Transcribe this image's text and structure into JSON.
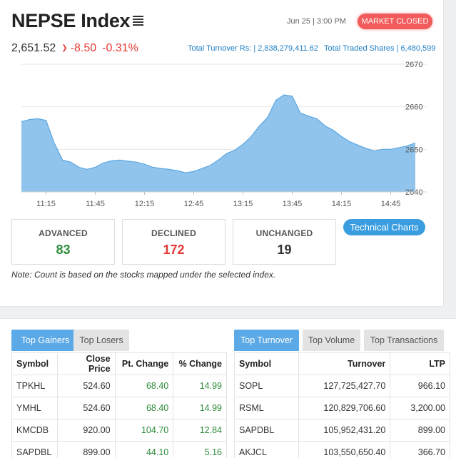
{
  "header": {
    "title": "NEPSE Index",
    "datetime": "Jun 25 | 3:00 PM",
    "market_status": "MARKET CLOSED"
  },
  "index": {
    "value": "2,651.52",
    "change": "-8.50",
    "percent": "-0.31%"
  },
  "turnover": {
    "label": "Total Turnover Rs: | 2,838,279,411.62",
    "shares": "Total Traded Shares | 6,480,599"
  },
  "chart_data": {
    "type": "area",
    "x_ticks": [
      "11:15",
      "11:45",
      "12:15",
      "12:45",
      "13:15",
      "13:45",
      "14:15",
      "14:45"
    ],
    "y_ticks": [
      "2640",
      "2650",
      "2660",
      "2670"
    ],
    "ylim": [
      2640,
      2670
    ],
    "x": [
      "11:00",
      "11:05",
      "11:10",
      "11:15",
      "11:20",
      "11:25",
      "11:30",
      "11:35",
      "11:40",
      "11:45",
      "11:50",
      "11:55",
      "12:00",
      "12:05",
      "12:10",
      "12:15",
      "12:20",
      "12:25",
      "12:30",
      "12:35",
      "12:40",
      "12:45",
      "12:50",
      "12:55",
      "13:00",
      "13:05",
      "13:10",
      "13:15",
      "13:20",
      "13:25",
      "13:30",
      "13:35",
      "13:40",
      "13:45",
      "13:50",
      "13:55",
      "14:00",
      "14:05",
      "14:10",
      "14:15",
      "14:20",
      "14:25",
      "14:30",
      "14:35",
      "14:40",
      "14:45",
      "14:50",
      "14:55",
      "15:00"
    ],
    "values": [
      2656.5,
      2657.0,
      2657.2,
      2656.8,
      2651.5,
      2647.5,
      2647.0,
      2645.8,
      2645.3,
      2645.8,
      2646.8,
      2647.3,
      2647.5,
      2647.2,
      2647.0,
      2646.5,
      2645.8,
      2645.5,
      2645.3,
      2645.0,
      2644.5,
      2644.8,
      2645.5,
      2646.2,
      2647.5,
      2649.0,
      2649.8,
      2651.2,
      2653.0,
      2655.5,
      2657.5,
      2661.5,
      2662.8,
      2662.5,
      2658.5,
      2657.8,
      2657.2,
      2655.5,
      2654.5,
      2653.0,
      2651.8,
      2651.0,
      2650.2,
      2649.6,
      2650.0,
      2650.0,
      2650.4,
      2650.8,
      2651.5
    ]
  },
  "stats": {
    "advanced_label": "ADVANCED",
    "advanced_value": "83",
    "declined_label": "DECLINED",
    "declined_value": "172",
    "unchanged_label": "UNCHANGED",
    "unchanged_value": "19"
  },
  "technical_charts_label": "Technical Charts",
  "note": "Note: Count is based on the stocks mapped under the selected index.",
  "colors": {
    "accent": "#3a9de0",
    "chart_fill": "#91c4ec",
    "chart_line": "#5aa6e2",
    "negative": "#e53935",
    "positive": "#2e8b3c",
    "market_closed": "#f25b5b"
  },
  "gainers": {
    "tabs": [
      "Top Gainers",
      "Top Losers"
    ],
    "headers": [
      "Symbol",
      "Close Price",
      "Pt. Change",
      "% Change"
    ],
    "rows": [
      [
        "TPKHL",
        "524.60",
        "68.40",
        "14.99"
      ],
      [
        "YMHL",
        "524.60",
        "68.40",
        "14.99"
      ],
      [
        "KMCDB",
        "920.00",
        "104.70",
        "12.84"
      ],
      [
        "SAPDBL",
        "899.00",
        "44.10",
        "5.16"
      ]
    ]
  },
  "turnover_table": {
    "tabs": [
      "Top Turnover",
      "Top Volume",
      "Top Transactions"
    ],
    "headers": [
      "Symbol",
      "Turnover",
      "LTP"
    ],
    "rows": [
      [
        "SOPL",
        "127,725,427.70",
        "966.10"
      ],
      [
        "RSML",
        "120,829,706.60",
        "3,200.00"
      ],
      [
        "SAPDBL",
        "105,952,431.20",
        "899.00"
      ],
      [
        "AKJCL",
        "103,550,650.40",
        "366.70"
      ]
    ]
  }
}
